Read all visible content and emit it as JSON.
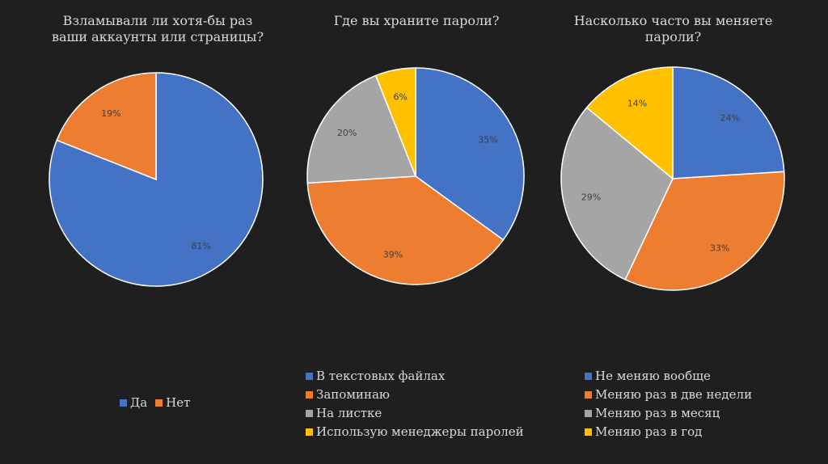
{
  "chart_data": [
    {
      "type": "pie",
      "title": "Взламывали ли хотя-бы раз\nваши аккаунты или страницы?",
      "categories": [
        "Да",
        "Нет"
      ],
      "values": [
        81,
        19
      ],
      "labels": [
        "81%",
        "19%"
      ],
      "colors": [
        "#4472c4",
        "#ed7d31"
      ],
      "legend_position": "bottom"
    },
    {
      "type": "pie",
      "title": "Где вы храните пароли?",
      "categories": [
        "В текстовых файлах",
        "Запоминаю",
        "На листке",
        "Использую менеджеры паролей"
      ],
      "values": [
        35,
        39,
        20,
        6
      ],
      "labels": [
        "35%",
        "39%",
        "20%",
        "6%"
      ],
      "colors": [
        "#4472c4",
        "#ed7d31",
        "#a5a5a5",
        "#ffc000"
      ],
      "legend_position": "bottom"
    },
    {
      "type": "pie",
      "title": "Насколько часто вы меняете\nпароли?",
      "categories": [
        "Не меняю вообще",
        "Меняю раз в две недели",
        "Меняю раз в месяц",
        "Меняю раз в год"
      ],
      "values": [
        24,
        33,
        29,
        14
      ],
      "labels": [
        "24%",
        "33%",
        "29%",
        "14%"
      ],
      "colors": [
        "#4472c4",
        "#ed7d31",
        "#a5a5a5",
        "#ffc000"
      ],
      "legend_position": "bottom"
    }
  ]
}
